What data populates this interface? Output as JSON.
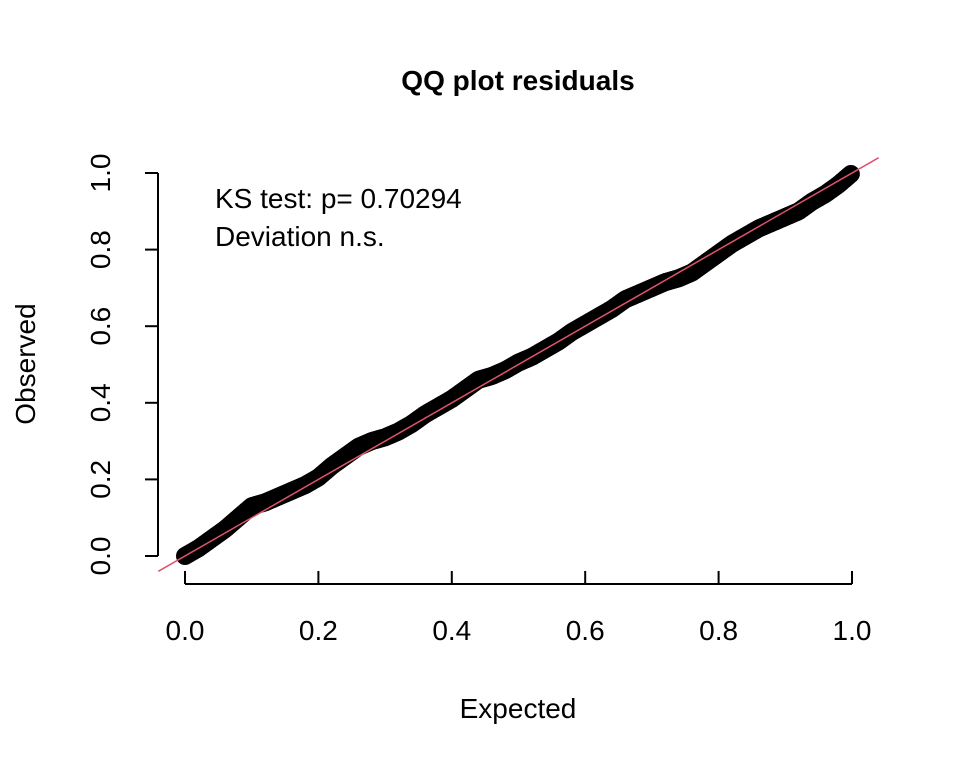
{
  "chart_data": {
    "type": "scatter",
    "title": "QQ plot residuals",
    "xlabel": "Expected",
    "ylabel": "Observed",
    "xlim": [
      0,
      1
    ],
    "ylim": [
      0,
      1
    ],
    "xticks": [
      "0.0",
      "0.2",
      "0.4",
      "0.6",
      "0.8",
      "1.0"
    ],
    "yticks": [
      "0.0",
      "0.2",
      "0.4",
      "0.6",
      "0.8",
      "1.0"
    ],
    "annotations": [
      "KS test: p= 0.70294",
      "Deviation  n.s."
    ],
    "grid": false,
    "reference_line": {
      "intercept": 0,
      "slope": 1,
      "color": "#DF536B"
    },
    "point_color": "#000000",
    "points": [
      [
        0.0,
        0.0
      ],
      [
        0.02,
        0.02
      ],
      [
        0.04,
        0.045
      ],
      [
        0.06,
        0.07
      ],
      [
        0.08,
        0.1
      ],
      [
        0.1,
        0.13
      ],
      [
        0.12,
        0.14
      ],
      [
        0.14,
        0.155
      ],
      [
        0.16,
        0.17
      ],
      [
        0.18,
        0.185
      ],
      [
        0.2,
        0.205
      ],
      [
        0.22,
        0.235
      ],
      [
        0.24,
        0.26
      ],
      [
        0.26,
        0.285
      ],
      [
        0.28,
        0.3
      ],
      [
        0.3,
        0.31
      ],
      [
        0.32,
        0.325
      ],
      [
        0.34,
        0.345
      ],
      [
        0.36,
        0.37
      ],
      [
        0.38,
        0.39
      ],
      [
        0.4,
        0.41
      ],
      [
        0.42,
        0.435
      ],
      [
        0.44,
        0.46
      ],
      [
        0.46,
        0.47
      ],
      [
        0.48,
        0.485
      ],
      [
        0.5,
        0.505
      ],
      [
        0.52,
        0.52
      ],
      [
        0.54,
        0.54
      ],
      [
        0.56,
        0.56
      ],
      [
        0.58,
        0.585
      ],
      [
        0.6,
        0.605
      ],
      [
        0.62,
        0.625
      ],
      [
        0.64,
        0.645
      ],
      [
        0.66,
        0.67
      ],
      [
        0.68,
        0.685
      ],
      [
        0.7,
        0.7
      ],
      [
        0.72,
        0.715
      ],
      [
        0.74,
        0.725
      ],
      [
        0.76,
        0.74
      ],
      [
        0.78,
        0.765
      ],
      [
        0.8,
        0.79
      ],
      [
        0.82,
        0.815
      ],
      [
        0.84,
        0.835
      ],
      [
        0.86,
        0.855
      ],
      [
        0.88,
        0.87
      ],
      [
        0.9,
        0.885
      ],
      [
        0.92,
        0.9
      ],
      [
        0.94,
        0.925
      ],
      [
        0.96,
        0.945
      ],
      [
        0.98,
        0.97
      ],
      [
        1.0,
        1.0
      ]
    ]
  }
}
